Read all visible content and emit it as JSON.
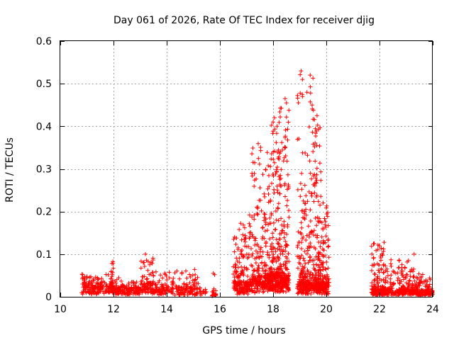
{
  "chart_data": {
    "type": "scatter",
    "title": "Day 061 of 2026, Rate Of TEC Index for receiver djig",
    "xlabel": "GPS time / hours",
    "ylabel": "ROTI / TECUs",
    "xlim": [
      10,
      24
    ],
    "ylim": [
      0,
      0.6
    ],
    "xticks": [
      "10",
      "12",
      "14",
      "16",
      "18",
      "20",
      "22",
      "24"
    ],
    "yticks": [
      "0",
      "0.1",
      "0.2",
      "0.3",
      "0.4",
      "0.5",
      "0.6"
    ],
    "grid": true,
    "marker": "+",
    "color": "#ff0000",
    "clusters": [
      {
        "x_range": [
          10.8,
          12.0
        ],
        "y_base": 0.015,
        "y_peak": 0.05,
        "density": 180
      },
      {
        "x_range": [
          11.9,
          12.0
        ],
        "y_base": 0.02,
        "y_peak": 0.08,
        "density": 25
      },
      {
        "x_range": [
          12.0,
          13.0
        ],
        "y_base": 0.012,
        "y_peak": 0.04,
        "density": 140
      },
      {
        "x_range": [
          13.0,
          13.5
        ],
        "y_base": 0.02,
        "y_peak": 0.1,
        "density": 90
      },
      {
        "x_range": [
          13.5,
          15.2
        ],
        "y_base": 0.012,
        "y_peak": 0.06,
        "density": 200
      },
      {
        "x_range": [
          15.2,
          15.5
        ],
        "y_base": 0.008,
        "y_peak": 0.02,
        "density": 15
      },
      {
        "x_range": [
          15.7,
          15.85
        ],
        "y_base": 0.005,
        "y_peak": 0.02,
        "density": 20
      },
      {
        "x_range": [
          16.5,
          17.2
        ],
        "y_base": 0.02,
        "y_peak": 0.18,
        "density": 200
      },
      {
        "x_range": [
          17.2,
          17.9
        ],
        "y_base": 0.03,
        "y_peak": 0.35,
        "density": 260
      },
      {
        "x_range": [
          17.9,
          18.2
        ],
        "y_base": 0.03,
        "y_peak": 0.42,
        "density": 170
      },
      {
        "x_range": [
          18.2,
          18.6
        ],
        "y_base": 0.03,
        "y_peak": 0.46,
        "density": 230
      },
      {
        "x_range": [
          18.9,
          19.5
        ],
        "y_base": 0.02,
        "y_peak": 0.53,
        "density": 260
      },
      {
        "x_range": [
          19.5,
          19.8
        ],
        "y_base": 0.02,
        "y_peak": 0.43,
        "density": 180
      },
      {
        "x_range": [
          19.8,
          20.1
        ],
        "y_base": 0.02,
        "y_peak": 0.22,
        "density": 120
      },
      {
        "x_range": [
          21.7,
          22.2
        ],
        "y_base": 0.01,
        "y_peak": 0.125,
        "density": 150
      },
      {
        "x_range": [
          22.2,
          23.3
        ],
        "y_base": 0.01,
        "y_peak": 0.09,
        "density": 220
      },
      {
        "x_range": [
          23.3,
          24.0
        ],
        "y_base": 0.008,
        "y_peak": 0.05,
        "density": 160
      }
    ],
    "highlights": [
      {
        "x": 15.75,
        "y": 0.055
      },
      {
        "x": 15.8,
        "y": 0.052
      },
      {
        "x": 18.45,
        "y": 0.465
      },
      {
        "x": 18.5,
        "y": 0.455
      },
      {
        "x": 19.05,
        "y": 0.53
      },
      {
        "x": 19.1,
        "y": 0.51
      },
      {
        "x": 19.1,
        "y": 0.47
      },
      {
        "x": 19.65,
        "y": 0.425
      },
      {
        "x": 18.05,
        "y": 0.42
      },
      {
        "x": 18.0,
        "y": 0.41
      },
      {
        "x": 21.8,
        "y": 0.125
      },
      {
        "x": 13.2,
        "y": 0.1
      },
      {
        "x": 23.3,
        "y": 0.1
      }
    ]
  }
}
